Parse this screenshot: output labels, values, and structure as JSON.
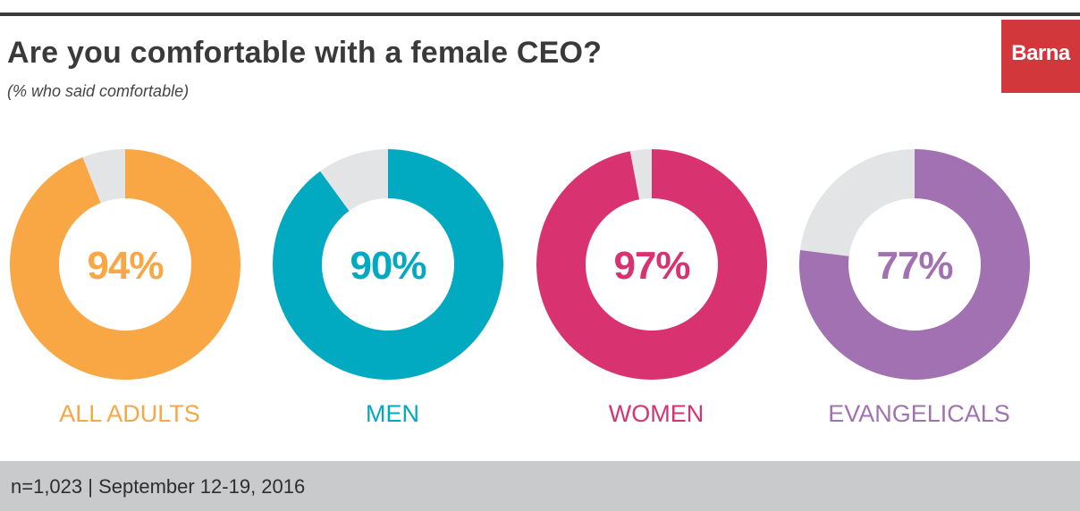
{
  "header": {
    "title": "Are you comfortable with a female CEO?",
    "subtitle": "(% who said comfortable)",
    "brand": "Barna"
  },
  "colors": {
    "brand_bg": "#d2373b",
    "remainder": "#e3e4e5"
  },
  "chart_data": {
    "type": "pie",
    "style": "donut",
    "series": [
      {
        "name": "ALL ADULTS",
        "value": 94,
        "label": "94%",
        "color": "#f9a745"
      },
      {
        "name": "MEN",
        "value": 90,
        "label": "90%",
        "color": "#01a9c1"
      },
      {
        "name": "WOMEN",
        "value": 97,
        "label": "97%",
        "color": "#d93270"
      },
      {
        "name": "EVANGELICALS",
        "value": 77,
        "label": "77%",
        "color": "#a171b1"
      }
    ]
  },
  "footer": {
    "note": "n=1,023 | September 12-19, 2016"
  }
}
